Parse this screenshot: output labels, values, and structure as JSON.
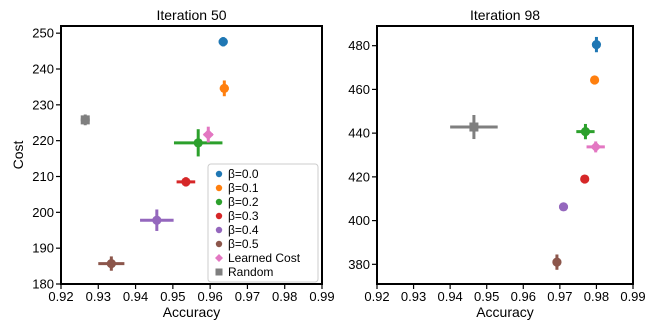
{
  "chart_data": [
    {
      "type": "scatter",
      "title": "Iteration 50",
      "xlabel": "Accuracy",
      "ylabel": "Cost",
      "xlim": [
        0.92,
        0.99
      ],
      "ylim": [
        180,
        252
      ],
      "xticks": [
        0.92,
        0.93,
        0.94,
        0.95,
        0.96,
        0.97,
        0.98,
        0.99
      ],
      "xtick_labels": [
        "0.92",
        "0.93",
        "0.94",
        "0.95",
        "0.96",
        "0.97",
        "0.98",
        "0.99"
      ],
      "yticks": [
        180,
        190,
        200,
        210,
        220,
        230,
        240,
        250
      ],
      "ytick_labels": [
        "180",
        "190",
        "200",
        "210",
        "220",
        "230",
        "240",
        "250"
      ],
      "grid": false,
      "legend_position": "bottom-right",
      "series": [
        {
          "name": "β=0.0",
          "color": "#1f77b4",
          "marker": "circle",
          "x": 0.9635,
          "y": 247.6,
          "xerr": 0.0012,
          "yerr": 1.3
        },
        {
          "name": "β=0.1",
          "color": "#ff7f0e",
          "marker": "circle",
          "x": 0.9638,
          "y": 234.6,
          "xerr": 0.0012,
          "yerr": 2.2
        },
        {
          "name": "β=0.2",
          "color": "#2ca02c",
          "marker": "circle",
          "x": 0.9568,
          "y": 219.4,
          "xerr": 0.0065,
          "yerr": 3.8
        },
        {
          "name": "β=0.3",
          "color": "#d62728",
          "marker": "circle",
          "x": 0.9535,
          "y": 208.5,
          "xerr": 0.0025,
          "yerr": 1.3
        },
        {
          "name": "β=0.4",
          "color": "#9467bd",
          "marker": "circle",
          "x": 0.9457,
          "y": 197.8,
          "xerr": 0.0045,
          "yerr": 3.0
        },
        {
          "name": "β=0.5",
          "color": "#8c564b",
          "marker": "circle",
          "x": 0.9335,
          "y": 185.7,
          "xerr": 0.0035,
          "yerr": 2.0
        },
        {
          "name": "Learned Cost",
          "color": "#e377c2",
          "marker": "diamond",
          "x": 0.9595,
          "y": 221.7,
          "xerr": 0.0012,
          "yerr": 2.2
        },
        {
          "name": "Random",
          "color": "#7f7f7f",
          "marker": "square",
          "x": 0.9265,
          "y": 225.8,
          "xerr": 0.0012,
          "yerr": 1.5
        }
      ]
    },
    {
      "type": "scatter",
      "title": "Iteration 98",
      "xlabel": "Accuracy",
      "ylabel": "",
      "xlim": [
        0.92,
        0.99
      ],
      "ylim": [
        371,
        489
      ],
      "xticks": [
        0.92,
        0.93,
        0.94,
        0.95,
        0.96,
        0.97,
        0.98,
        0.99
      ],
      "xtick_labels": [
        "0.92",
        "0.93",
        "0.94",
        "0.95",
        "0.96",
        "0.97",
        "0.98",
        "0.99"
      ],
      "yticks": [
        380,
        400,
        420,
        440,
        460,
        480
      ],
      "ytick_labels": [
        "380",
        "400",
        "420",
        "440",
        "460",
        "480"
      ],
      "grid": false,
      "series": [
        {
          "name": "β=0.0",
          "color": "#1f77b4",
          "marker": "circle",
          "x": 0.98,
          "y": 480.5,
          "xerr": 0.0005,
          "yerr": 3.5
        },
        {
          "name": "β=0.1",
          "color": "#ff7f0e",
          "marker": "circle",
          "x": 0.9795,
          "y": 464.3,
          "xerr": 0.0008,
          "yerr": 1.5
        },
        {
          "name": "β=0.2",
          "color": "#2ca02c",
          "marker": "circle",
          "x": 0.977,
          "y": 440.7,
          "xerr": 0.0025,
          "yerr": 3.5
        },
        {
          "name": "β=0.3",
          "color": "#d62728",
          "marker": "circle",
          "x": 0.9768,
          "y": 419.0,
          "xerr": 0.0005,
          "yerr": 1.0
        },
        {
          "name": "β=0.4",
          "color": "#9467bd",
          "marker": "circle",
          "x": 0.971,
          "y": 406.3,
          "xerr": 0.0012,
          "yerr": 1.2
        },
        {
          "name": "β=0.5",
          "color": "#8c564b",
          "marker": "circle",
          "x": 0.9692,
          "y": 381.0,
          "xerr": 0.0008,
          "yerr": 3.5
        },
        {
          "name": "Learned Cost",
          "color": "#e377c2",
          "marker": "diamond",
          "x": 0.9798,
          "y": 433.7,
          "xerr": 0.0025,
          "yerr": 2.5
        },
        {
          "name": "Random",
          "color": "#7f7f7f",
          "marker": "square",
          "x": 0.9465,
          "y": 442.8,
          "xerr": 0.0065,
          "yerr": 5.5
        }
      ]
    }
  ]
}
